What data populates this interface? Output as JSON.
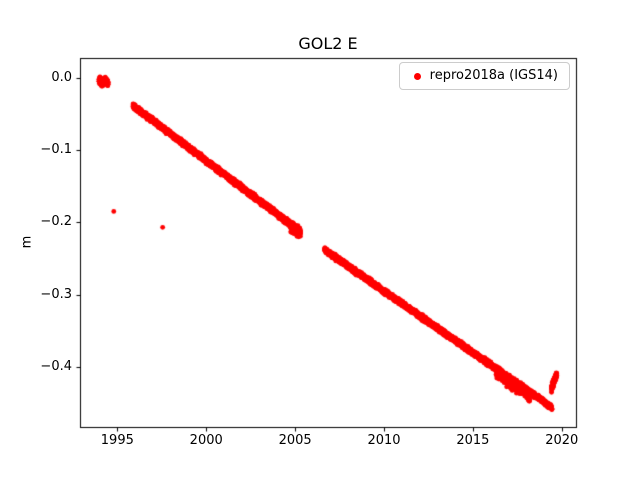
{
  "figure": {
    "background": "#ffffff",
    "text_color": "#000000"
  },
  "chart_data": {
    "type": "scatter",
    "title": "GOL2 E",
    "xlabel": "",
    "ylabel": "m",
    "xlim": [
      1992.9,
      2020.8
    ],
    "ylim": [
      -0.483,
      0.027
    ],
    "grid": false,
    "xticks": [
      1995,
      2000,
      2005,
      2010,
      2015,
      2020
    ],
    "xtick_labels": [
      "1995",
      "2000",
      "2005",
      "2010",
      "2015",
      "2020"
    ],
    "yticks": [
      0.0,
      -0.1,
      -0.2,
      -0.3,
      -0.4
    ],
    "ytick_labels": [
      "0.0",
      "−0.1",
      "−0.2",
      "−0.3",
      "−0.4"
    ],
    "legend": {
      "label": "repro2018a (IGS14)",
      "position": "upper right",
      "marker_color": "#ff0000"
    },
    "marker": {
      "shape": "circle",
      "color": "#ff0000",
      "radius_px": 2.4
    },
    "series": [
      {
        "name": "repro2018a (IGS14)",
        "color": "#ff0000",
        "segments": [
          {
            "x0": 1993.97,
            "x1": 1994.22,
            "y0": -0.004,
            "y1": -0.007,
            "n": 160,
            "jitter": 0.007
          },
          {
            "x0": 1994.3,
            "x1": 1994.48,
            "y0": -0.003,
            "y1": -0.007,
            "n": 90,
            "jitter": 0.006
          },
          {
            "x0": 1995.88,
            "x1": 2005.3,
            "y0": -0.039,
            "y1": -0.213,
            "n": 2300,
            "jitter": 0.005
          },
          {
            "x0": 2004.75,
            "x1": 2005.3,
            "y0": -0.206,
            "y1": -0.215,
            "n": 200,
            "jitter": 0.009
          },
          {
            "x0": 2006.65,
            "x1": 2019.45,
            "y0": -0.238,
            "y1": -0.456,
            "n": 3000,
            "jitter": 0.005
          },
          {
            "x0": 2016.3,
            "x1": 2018.2,
            "y0": -0.409,
            "y1": -0.441,
            "n": 220,
            "jitter": 0.01
          },
          {
            "x0": 2019.42,
            "x1": 2019.72,
            "y0": -0.43,
            "y1": -0.409,
            "n": 150,
            "jitter": 0.006
          }
        ],
        "outliers": [
          {
            "x": 1994.8,
            "y": -0.185
          },
          {
            "x": 1997.55,
            "y": -0.207
          }
        ]
      }
    ]
  }
}
